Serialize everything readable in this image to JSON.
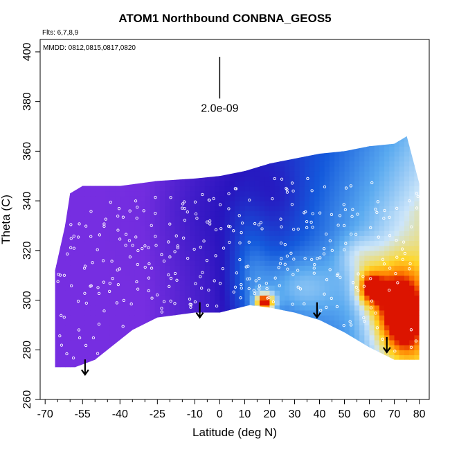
{
  "title": "ATOM1 Northbound CONBNA_GEOS5",
  "flights_label": "Flts: 6,7,8,9",
  "dates_label": "MMDD: 0812,0815,0817,0820",
  "chart_data": {
    "type": "heatmap",
    "title": "ATOM1 Northbound CONBNA_GEOS5",
    "xlabel": "Latitude (deg N)",
    "ylabel": "Theta (C)",
    "xlim": [
      -72,
      84
    ],
    "ylim": [
      260,
      405
    ],
    "x_ticks": [
      -70,
      -55,
      -40,
      -25,
      -10,
      0,
      10,
      20,
      30,
      40,
      50,
      60,
      70,
      80
    ],
    "x_minor_ticks": [
      -65,
      -60,
      -50,
      -45,
      -35,
      -30,
      -20,
      -15,
      -5,
      5,
      15,
      25,
      35,
      45,
      55,
      65,
      75
    ],
    "y_ticks": [
      260,
      280,
      300,
      320,
      340,
      360,
      380,
      400
    ],
    "scale_bar": {
      "x": 0,
      "y_top": 398,
      "y_bottom": 384,
      "label": "2.0e-09"
    },
    "arrows": [
      {
        "lat": -54,
        "theta": 270
      },
      {
        "lat": -8,
        "theta": 293
      },
      {
        "lat": 39,
        "theta": 293
      },
      {
        "lat": 67,
        "theta": 279
      }
    ],
    "field_lower_boundary": [
      [
        -66,
        273
      ],
      [
        -58,
        273
      ],
      [
        -50,
        276
      ],
      [
        -35,
        288
      ],
      [
        -25,
        293
      ],
      [
        -10,
        295
      ],
      [
        0,
        295
      ],
      [
        12,
        298
      ],
      [
        20,
        297
      ],
      [
        30,
        295
      ],
      [
        40,
        292
      ],
      [
        50,
        287
      ],
      [
        60,
        281
      ],
      [
        70,
        276
      ],
      [
        80,
        276
      ]
    ],
    "field_upper_boundary": [
      [
        -66,
        312
      ],
      [
        -62,
        330
      ],
      [
        -60,
        343
      ],
      [
        -55,
        346
      ],
      [
        -40,
        346
      ],
      [
        -25,
        348
      ],
      [
        -10,
        349
      ],
      [
        0,
        350
      ],
      [
        10,
        352
      ],
      [
        20,
        355
      ],
      [
        30,
        357
      ],
      [
        40,
        359
      ],
      [
        50,
        360
      ],
      [
        60,
        362
      ],
      [
        70,
        363
      ],
      [
        75,
        366
      ],
      [
        80,
        347
      ]
    ],
    "high_value_features": [
      {
        "lat": 18,
        "theta": 298,
        "level": "max"
      },
      {
        "lat": 72,
        "theta": 305,
        "level": "high"
      },
      {
        "lat": 75,
        "theta": 290,
        "level": "high"
      },
      {
        "lat": 62,
        "theta": 306,
        "level": "elevated"
      }
    ]
  }
}
